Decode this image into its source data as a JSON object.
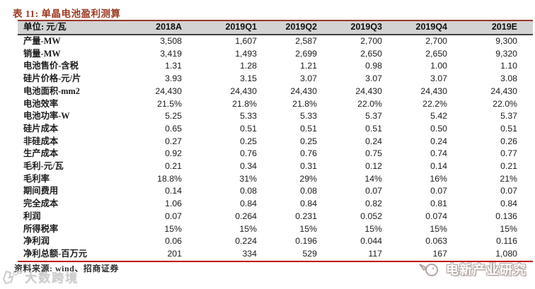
{
  "title": "表 11: 单晶电池盈利测算",
  "table": {
    "unit_header": "单位: 元/瓦",
    "columns": [
      "2018A",
      "2019Q1",
      "2019Q2",
      "2019Q3",
      "2019Q4",
      "2019E"
    ],
    "rows": [
      {
        "label": "产量-MW",
        "values": [
          "3,508",
          "1,607",
          "2,587",
          "2,700",
          "2,700",
          "9,300"
        ]
      },
      {
        "label": "销量-MW",
        "values": [
          "3,419",
          "1,493",
          "2,699",
          "2,650",
          "2,650",
          "9,320"
        ]
      },
      {
        "label": "电池售价-含税",
        "values": [
          "1.31",
          "1.28",
          "1.21",
          "0.98",
          "1.00",
          "1.10"
        ]
      },
      {
        "label": "硅片价格-元/片",
        "values": [
          "3.93",
          "3.15",
          "3.07",
          "3.07",
          "3.07",
          "3.08"
        ]
      },
      {
        "label": "电池面积-mm2",
        "values": [
          "24,430",
          "24,430",
          "24,430",
          "24,430",
          "24,430",
          "24,430"
        ]
      },
      {
        "label": "电池效率",
        "values": [
          "21.5%",
          "21.8%",
          "21.8%",
          "22.0%",
          "22.2%",
          "22.0%"
        ]
      },
      {
        "label": "电池功率-W",
        "values": [
          "5.25",
          "5.33",
          "5.33",
          "5.37",
          "5.42",
          "5.37"
        ]
      },
      {
        "label": "硅片成本",
        "values": [
          "0.65",
          "0.51",
          "0.51",
          "0.51",
          "0.50",
          "0.51"
        ]
      },
      {
        "label": "非硅成本",
        "values": [
          "0.27",
          "0.25",
          "0.25",
          "0.24",
          "0.24",
          "0.26"
        ]
      },
      {
        "label": "生产成本",
        "values": [
          "0.92",
          "0.76",
          "0.76",
          "0.75",
          "0.74",
          "0.77"
        ]
      },
      {
        "label": "毛利-元/瓦",
        "values": [
          "0.21",
          "0.34",
          "0.31",
          "0.12",
          "0.14",
          "0.21"
        ]
      },
      {
        "label": "毛利率",
        "values": [
          "18.8%",
          "31%",
          "29%",
          "14%",
          "16%",
          "21%"
        ]
      },
      {
        "label": "期间费用",
        "values": [
          "0.14",
          "0.08",
          "0.08",
          "0.07",
          "0.07",
          "0.07"
        ]
      },
      {
        "label": "完全成本",
        "values": [
          "1.06",
          "0.84",
          "0.84",
          "0.82",
          "0.81",
          "0.84"
        ]
      },
      {
        "label": "利润",
        "values": [
          "0.07",
          "0.264",
          "0.231",
          "0.052",
          "0.074",
          "0.136"
        ]
      },
      {
        "label": "所得税率",
        "values": [
          "15%",
          "15%",
          "15%",
          "15%",
          "15%",
          "15%"
        ]
      },
      {
        "label": "净利润",
        "values": [
          "0.06",
          "0.224",
          "0.196",
          "0.044",
          "0.063",
          "0.116"
        ]
      },
      {
        "label": "净利总额-百万元",
        "values": [
          "201",
          "334",
          "529",
          "117",
          "167",
          "1,080"
        ]
      }
    ]
  },
  "footer": {
    "source": "资料来源: wind、招商证券"
  },
  "watermarks": {
    "bottom_left": "大数跨境",
    "bottom_right": "电新产业研究"
  },
  "icons": {
    "watermark_logo": "rounded-blob-logo",
    "mascot": "bird-outline"
  },
  "colors": {
    "accent_title": "#9c3a22",
    "header_bg": "#d3d3d3",
    "header_top_rule": "#96382a",
    "header_bottom_rule": "#404040",
    "table_bottom_rule": "#c00000",
    "watermark_gray": "#cccccc"
  }
}
